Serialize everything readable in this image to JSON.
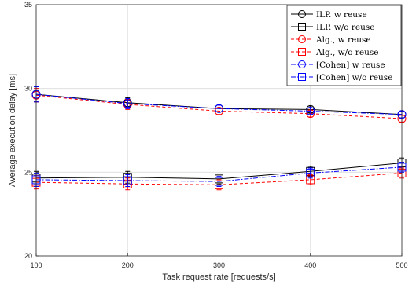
{
  "chart_data": {
    "type": "line",
    "title": "",
    "xlabel": "Task request rate [requests/s]",
    "ylabel": "Average execution delay [ms]",
    "x": [
      100,
      200,
      300,
      400,
      500
    ],
    "x_ticks": [
      "100",
      "200",
      "300",
      "400",
      "500"
    ],
    "y_ticks": [
      "20",
      "25",
      "30",
      "35"
    ],
    "xlim": [
      100,
      500
    ],
    "ylim": [
      20,
      35
    ],
    "grid": true,
    "legend_position": "top-right",
    "series": [
      {
        "name": "ILP. w reuse",
        "color": "#000000",
        "line": "solid",
        "marker": "circle",
        "values": [
          29.65,
          29.15,
          28.8,
          28.75,
          28.45
        ],
        "err": [
          0.45,
          0.3,
          0.2,
          0.2,
          0.2
        ]
      },
      {
        "name": "ILP. w/o reuse",
        "color": "#000000",
        "line": "solid",
        "marker": "square",
        "values": [
          24.65,
          24.7,
          24.6,
          25.05,
          25.55
        ],
        "err": [
          0.4,
          0.35,
          0.3,
          0.3,
          0.3
        ]
      },
      {
        "name": "Alg., w reuse",
        "color": "#ff0000",
        "line": "dashed",
        "marker": "circle",
        "values": [
          29.6,
          29.05,
          28.65,
          28.5,
          28.2
        ],
        "err": [
          0.4,
          0.3,
          0.2,
          0.2,
          0.2
        ]
      },
      {
        "name": "Alg., w/o reuse",
        "color": "#ff0000",
        "line": "dashed",
        "marker": "square",
        "values": [
          24.4,
          24.3,
          24.25,
          24.55,
          24.95
        ],
        "err": [
          0.4,
          0.35,
          0.3,
          0.3,
          0.3
        ]
      },
      {
        "name": "[Cohen] w reuse",
        "color": "#0000ff",
        "line": "dashdot",
        "marker": "circle",
        "values": [
          29.65,
          29.1,
          28.8,
          28.65,
          28.45
        ],
        "err": [
          0.45,
          0.3,
          0.2,
          0.2,
          0.2
        ]
      },
      {
        "name": "[Cohen] w/o reuse",
        "color": "#0000ff",
        "line": "dashdot",
        "marker": "square",
        "values": [
          24.55,
          24.5,
          24.45,
          24.95,
          25.3
        ],
        "err": [
          0.4,
          0.35,
          0.3,
          0.3,
          0.3
        ]
      }
    ]
  }
}
